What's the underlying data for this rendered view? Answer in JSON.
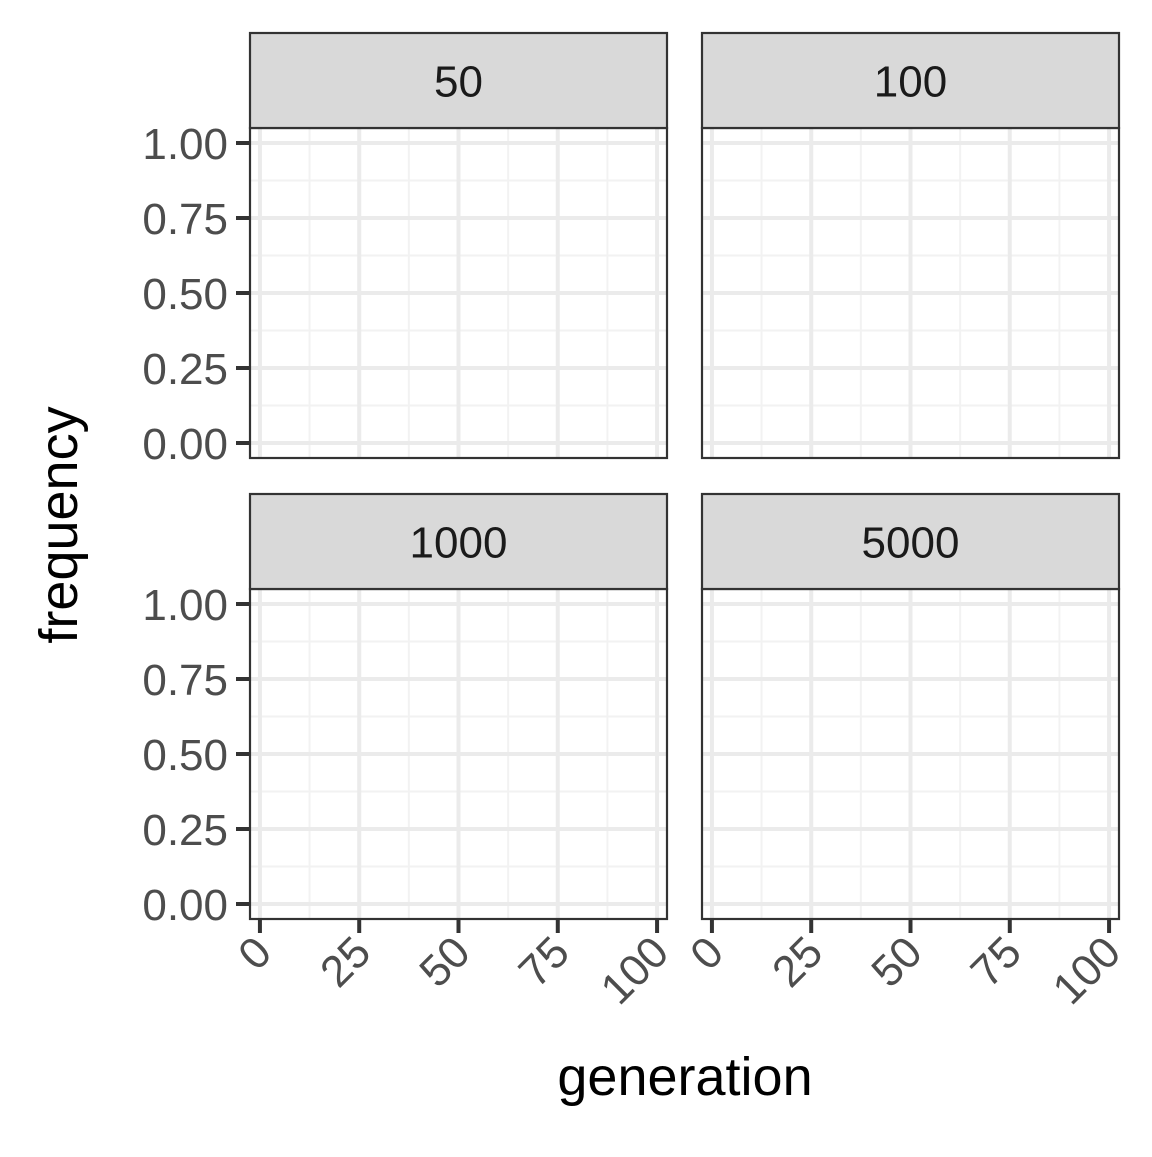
{
  "chart_data": {
    "type": "line",
    "facet_layout": "2x2",
    "xlabel": "generation",
    "ylabel": "frequency",
    "xlim": [
      -2.5,
      102.5
    ],
    "ylim": [
      -0.05,
      1.05
    ],
    "x_major_ticks": [
      0,
      25,
      50,
      75,
      100
    ],
    "x_minor_ticks": [
      12.5,
      37.5,
      62.5,
      87.5
    ],
    "y_major_ticks": [
      0.0,
      0.25,
      0.5,
      0.75,
      1.0
    ],
    "y_minor_ticks": [
      0.125,
      0.375,
      0.625,
      0.875
    ],
    "x_tick_labels": [
      "0",
      "25",
      "50",
      "75",
      "100"
    ],
    "y_tick_labels": [
      "0.00",
      "0.25",
      "0.50",
      "0.75",
      "1.00"
    ],
    "grid": true,
    "theme": "bw",
    "colors": {
      "panel_border": "#333333",
      "strip_fill": "#d9d9d9",
      "grid_major": "#ebebeb",
      "grid_minor": "#f2f2f2",
      "tick_label": "#4d4d4d",
      "axis_title": "#000000",
      "strip_text": "#1a1a1a"
    },
    "facets": [
      {
        "label": "50",
        "series": []
      },
      {
        "label": "100",
        "series": []
      },
      {
        "label": "1000",
        "series": []
      },
      {
        "label": "5000",
        "series": []
      }
    ]
  }
}
